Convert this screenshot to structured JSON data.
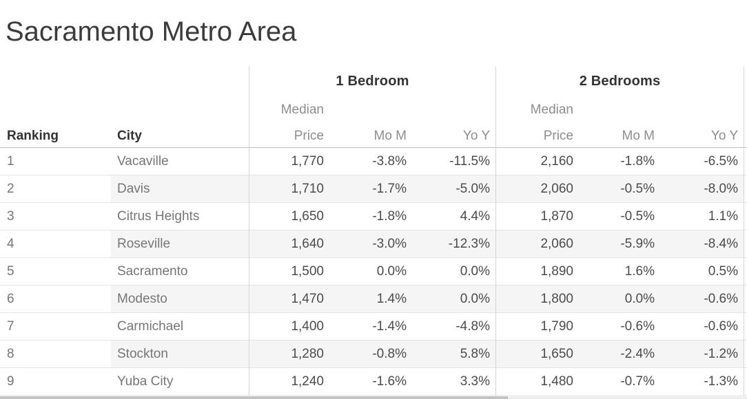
{
  "title": "Sacramento Metro Area",
  "table": {
    "row_headers": {
      "ranking": "Ranking",
      "city": "City"
    },
    "groups": [
      {
        "label": "1 Bedroom",
        "columns": [
          "Median Price",
          "Mo M",
          "Yo Y"
        ]
      },
      {
        "label": "2 Bedrooms",
        "columns": [
          "Median Price",
          "Mo M",
          "Yo Y"
        ]
      }
    ],
    "sub_headers": {
      "median_line1": "Median",
      "median_line2": "Price",
      "mom": "Mo M",
      "yoy": "Yo Y"
    },
    "rows": [
      {
        "ranking": "1",
        "city": "Vacaville",
        "br1_price": "1,770",
        "br1_mom": "-3.8%",
        "br1_yoy": "-11.5%",
        "br2_price": "2,160",
        "br2_mom": "-1.8%",
        "br2_yoy": "-6.5%"
      },
      {
        "ranking": "2",
        "city": "Davis",
        "br1_price": "1,710",
        "br1_mom": "-1.7%",
        "br1_yoy": "-5.0%",
        "br2_price": "2,060",
        "br2_mom": "-0.5%",
        "br2_yoy": "-8.0%"
      },
      {
        "ranking": "3",
        "city": "Citrus Heights",
        "br1_price": "1,650",
        "br1_mom": "-1.8%",
        "br1_yoy": "4.4%",
        "br2_price": "1,870",
        "br2_mom": "-0.5%",
        "br2_yoy": "1.1%"
      },
      {
        "ranking": "4",
        "city": "Roseville",
        "br1_price": "1,640",
        "br1_mom": "-3.0%",
        "br1_yoy": "-12.3%",
        "br2_price": "2,060",
        "br2_mom": "-5.9%",
        "br2_yoy": "-8.4%"
      },
      {
        "ranking": "5",
        "city": "Sacramento",
        "br1_price": "1,500",
        "br1_mom": "0.0%",
        "br1_yoy": "0.0%",
        "br2_price": "1,890",
        "br2_mom": "1.6%",
        "br2_yoy": "0.5%"
      },
      {
        "ranking": "6",
        "city": "Modesto",
        "br1_price": "1,470",
        "br1_mom": "1.4%",
        "br1_yoy": "0.0%",
        "br2_price": "1,800",
        "br2_mom": "0.0%",
        "br2_yoy": "-0.6%"
      },
      {
        "ranking": "7",
        "city": "Carmichael",
        "br1_price": "1,400",
        "br1_mom": "-1.4%",
        "br1_yoy": "-4.8%",
        "br2_price": "1,790",
        "br2_mom": "-0.6%",
        "br2_yoy": "-0.6%"
      },
      {
        "ranking": "8",
        "city": "Stockton",
        "br1_price": "1,280",
        "br1_mom": "-0.8%",
        "br1_yoy": "5.8%",
        "br2_price": "1,650",
        "br2_mom": "-2.4%",
        "br2_yoy": "-1.2%"
      },
      {
        "ranking": "9",
        "city": "Yuba City",
        "br1_price": "1,240",
        "br1_mom": "-1.6%",
        "br1_yoy": "3.3%",
        "br2_price": "1,480",
        "br2_mom": "-0.7%",
        "br2_yoy": "-1.3%"
      }
    ]
  },
  "colors": {
    "title_text": "#3b3b3b",
    "header_text": "#333333",
    "sub_header_text": "#8e8e8e",
    "row_label_text": "#767676",
    "value_text": "#4b4b4b",
    "stripe": "#f5f5f5",
    "row_border": "#e3e3e3",
    "header_border": "#bcbcbc",
    "pane_divider": "#d4d4d4",
    "scrollbar_thumb": "#c3c3c3"
  },
  "chart_data": {
    "type": "table",
    "title": "Sacramento Metro Area",
    "column_groups": [
      "1 Bedroom",
      "2 Bedrooms"
    ],
    "columns": [
      "Ranking",
      "City",
      "1 Bedroom Median Price",
      "1 Bedroom Mo M",
      "1 Bedroom Yo Y",
      "2 Bedrooms Median Price",
      "2 Bedrooms Mo M",
      "2 Bedrooms Yo Y"
    ],
    "rows": [
      [
        1,
        "Vacaville",
        1770,
        "-3.8%",
        "-11.5%",
        2160,
        "-1.8%",
        "-6.5%"
      ],
      [
        2,
        "Davis",
        1710,
        "-1.7%",
        "-5.0%",
        2060,
        "-0.5%",
        "-8.0%"
      ],
      [
        3,
        "Citrus Heights",
        1650,
        "-1.8%",
        "4.4%",
        1870,
        "-0.5%",
        "1.1%"
      ],
      [
        4,
        "Roseville",
        1640,
        "-3.0%",
        "-12.3%",
        2060,
        "-5.9%",
        "-8.4%"
      ],
      [
        5,
        "Sacramento",
        1500,
        "0.0%",
        "0.0%",
        1890,
        "1.6%",
        "0.5%"
      ],
      [
        6,
        "Modesto",
        1470,
        "1.4%",
        "0.0%",
        1800,
        "0.0%",
        "-0.6%"
      ],
      [
        7,
        "Carmichael",
        1400,
        "-1.4%",
        "-4.8%",
        1790,
        "-0.6%",
        "-0.6%"
      ],
      [
        8,
        "Stockton",
        1280,
        "-0.8%",
        "5.8%",
        1650,
        "-2.4%",
        "-1.2%"
      ],
      [
        9,
        "Yuba City",
        1240,
        "-1.6%",
        "3.3%",
        1480,
        "-0.7%",
        "-1.3%"
      ]
    ]
  }
}
